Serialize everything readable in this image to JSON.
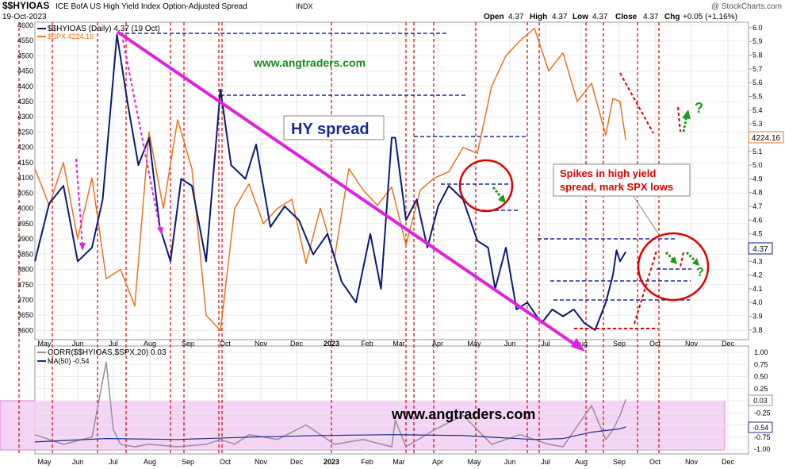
{
  "header": {
    "symbol": "$$HYIOAS",
    "description": "ICE BofA US High Yield Index Option-Adjusted Spread",
    "exchange": "INDX",
    "date": "19-Oct-2023",
    "brand": "@ StockCharts.com",
    "ohlc": {
      "open_label": "Open",
      "open": "4.37",
      "high_label": "High",
      "high": "4.37",
      "low_label": "Low",
      "low": "4.37",
      "close_label": "Close",
      "close": "4.37",
      "chg_label": "Chg",
      "chg": "+0.05 (+1.16%)"
    }
  },
  "legend": {
    "hy": "$$HYIOAS (Daily) 4.37 (19 Oct)",
    "spx": "$SPX 4224.16",
    "corr": "CORR($$HYIOAS,$SPX,20) 0.03",
    "ma": "MA(50) -0.54"
  },
  "annotations": {
    "watermark_top": "www.angtraders.com",
    "watermark_bottom": "www.angtraders.com",
    "hy_spread": "HY spread",
    "callout_line1": "Spikes in high yield",
    "callout_line2": "spread, mark SPX lows",
    "question1": "?",
    "question2": "?"
  },
  "badges": {
    "spx_last": "4224.16",
    "hy_last": "4.37",
    "corr_last": "0.03",
    "ma_last": "-0.54"
  },
  "colors": {
    "hy": "#0a1a78",
    "spx": "#e8741c",
    "corr": "#9a8c9a",
    "ma": "#1a2a8a",
    "magenta": "#e020e0",
    "red_dash": "#dd0000",
    "green": "#1a9a1a",
    "band": "#f0c8f0"
  },
  "chart_data": {
    "type": "line",
    "title": "$$HYIOAS ICE BofA US High Yield Index Option-Adjusted Spread",
    "x_ticks": [
      "May",
      "Jun",
      "Jul",
      "Aug",
      "Sep",
      "Oct",
      "Nov",
      "Dec",
      "2023",
      "Feb",
      "Mar",
      "Apr",
      "May",
      "Jun",
      "Jul",
      "Aug",
      "Sep",
      "Oct",
      "Nov",
      "Dec"
    ],
    "left_axis": {
      "ticks": [
        3600,
        3650,
        3700,
        3750,
        3800,
        3850,
        3900,
        3950,
        4000,
        4050,
        4100,
        4150,
        4200,
        4250,
        4300,
        4350,
        4400,
        4450,
        4500,
        4550,
        4600
      ]
    },
    "right_axis": {
      "ticks": [
        "6.0",
        "5.9",
        "5.8",
        "5.7",
        "5.6",
        "5.5",
        "5.4",
        "5.3",
        "5.2",
        "5.1",
        "5.0",
        "4.9",
        "4.8",
        "4.7",
        "4.6",
        "4.5",
        "4.4",
        "4.3",
        "4.2",
        "4.1",
        "4.0",
        "3.9",
        "3.8"
      ]
    },
    "lower_axis": {
      "ticks": [
        "1.00",
        "0.75",
        "0.50",
        "0.25",
        "0.00",
        "-0.25",
        "-0.50",
        "-0.75",
        "-1.00"
      ]
    },
    "series": [
      {
        "name": "$$HYIOAS (Daily)",
        "axis": "right",
        "x": [
          0,
          0.02,
          0.04,
          0.06,
          0.08,
          0.095,
          0.115,
          0.13,
          0.145,
          0.16,
          0.175,
          0.19,
          0.205,
          0.22,
          0.24,
          0.26,
          0.275,
          0.295,
          0.31,
          0.33,
          0.35,
          0.37,
          0.39,
          0.41,
          0.43,
          0.45,
          0.47,
          0.485,
          0.5,
          0.505,
          0.52,
          0.535,
          0.55,
          0.565,
          0.58,
          0.6,
          0.62,
          0.635,
          0.645,
          0.66,
          0.675,
          0.69,
          0.71,
          0.725,
          0.74,
          0.755,
          0.77,
          0.785,
          0.8,
          0.81,
          0.815,
          0.82,
          0.828
        ],
        "values": [
          4.3,
          4.72,
          4.85,
          4.3,
          4.4,
          4.75,
          5.95,
          5.45,
          5.0,
          5.2,
          4.55,
          4.3,
          4.9,
          4.85,
          4.3,
          5.55,
          5.0,
          4.9,
          5.15,
          4.55,
          4.7,
          4.6,
          4.35,
          4.5,
          4.15,
          4.0,
          4.5,
          4.1,
          5.2,
          5.2,
          4.6,
          4.75,
          4.4,
          4.7,
          4.85,
          4.75,
          4.45,
          4.4,
          4.1,
          4.4,
          3.95,
          4.0,
          3.85,
          3.95,
          3.9,
          3.95,
          3.85,
          3.8,
          4.0,
          4.2,
          4.38,
          4.3,
          4.37
        ]
      },
      {
        "name": "$SPX",
        "axis": "left",
        "x": [
          0,
          0.02,
          0.04,
          0.06,
          0.08,
          0.1,
          0.12,
          0.14,
          0.16,
          0.18,
          0.2,
          0.22,
          0.24,
          0.26,
          0.28,
          0.3,
          0.32,
          0.34,
          0.36,
          0.38,
          0.4,
          0.42,
          0.44,
          0.46,
          0.48,
          0.5,
          0.52,
          0.54,
          0.56,
          0.58,
          0.6,
          0.62,
          0.64,
          0.66,
          0.68,
          0.7,
          0.72,
          0.74,
          0.76,
          0.78,
          0.8,
          0.81,
          0.82,
          0.828
        ],
        "values": [
          4130,
          4010,
          4150,
          3900,
          4100,
          3770,
          3800,
          3680,
          4250,
          4000,
          4290,
          4130,
          3650,
          3600,
          4000,
          4080,
          3950,
          4000,
          4030,
          3820,
          4000,
          3840,
          4130,
          4060,
          4010,
          4070,
          3880,
          4060,
          4100,
          4120,
          4200,
          4180,
          4400,
          4500,
          4550,
          4590,
          4450,
          4510,
          4350,
          4410,
          4240,
          4360,
          4350,
          4224
        ]
      },
      {
        "name": "CORR($$HYIOAS,$SPX,20)",
        "axis": "lower",
        "x": [
          0,
          0.04,
          0.08,
          0.1,
          0.11,
          0.12,
          0.14,
          0.16,
          0.2,
          0.24,
          0.26,
          0.28,
          0.3,
          0.34,
          0.38,
          0.42,
          0.46,
          0.5,
          0.505,
          0.52,
          0.56,
          0.6,
          0.64,
          0.68,
          0.72,
          0.74,
          0.78,
          0.8,
          0.81,
          0.82,
          0.828
        ],
        "values": [
          -0.7,
          -0.9,
          -0.75,
          0.8,
          -0.6,
          -0.9,
          -0.95,
          -0.9,
          -0.95,
          -0.9,
          -0.8,
          -0.9,
          -0.7,
          -0.8,
          -0.5,
          -0.9,
          -0.8,
          -0.95,
          -0.4,
          -0.95,
          -0.6,
          -0.3,
          -0.9,
          -0.7,
          -0.9,
          -0.95,
          -0.1,
          -0.8,
          -0.6,
          -0.3,
          0.03
        ]
      },
      {
        "name": "MA(50)",
        "axis": "lower",
        "x": [
          0,
          0.1,
          0.2,
          0.3,
          0.4,
          0.5,
          0.6,
          0.7,
          0.74,
          0.78,
          0.82,
          0.828
        ],
        "values": [
          -0.85,
          -0.78,
          -0.8,
          -0.75,
          -0.72,
          -0.7,
          -0.72,
          -0.8,
          -0.78,
          -0.65,
          -0.58,
          -0.54
        ]
      }
    ]
  }
}
